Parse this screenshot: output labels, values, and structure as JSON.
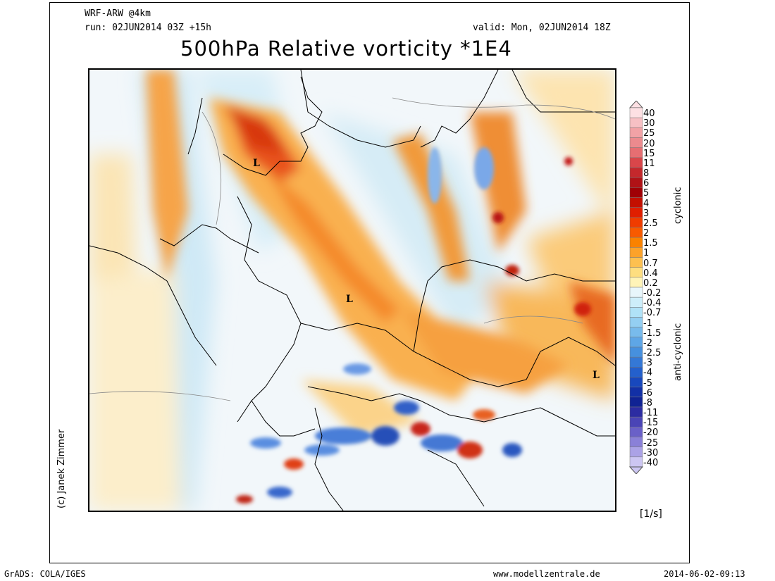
{
  "header": {
    "model": "WRF-ARW @4km",
    "run": "run: 02JUN2014 03Z +15h",
    "valid": "valid: Mon, 02JUN2014 18Z",
    "title": "500hPa Relative vorticity *1E4"
  },
  "map": {
    "low_markers": [
      "L",
      "L",
      "L"
    ]
  },
  "legend": {
    "levels": [
      "40",
      "30",
      "25",
      "20",
      "15",
      "11",
      "8",
      "6",
      "5",
      "4",
      "3",
      "2.5",
      "2",
      "1.5",
      "1",
      "0.7",
      "0.4",
      "0.2",
      "-0.2",
      "-0.4",
      "-0.7",
      "-1",
      "-1.5",
      "-2",
      "-2.5",
      "-3",
      "-4",
      "-5",
      "-6",
      "-8",
      "-11",
      "-15",
      "-20",
      "-25",
      "-30",
      "-40"
    ],
    "colors": [
      "#fde0e3",
      "#f7c0c4",
      "#f2a2a6",
      "#ec8a8e",
      "#e66e72",
      "#d9464a",
      "#c4282c",
      "#b01216",
      "#a00005",
      "#c30f00",
      "#e01e00",
      "#f03c00",
      "#f85a00",
      "#fa8200",
      "#fca22a",
      "#fdc050",
      "#fede80",
      "#fff4b8",
      "#e8f6fb",
      "#cdeefa",
      "#b0e2f7",
      "#94cff2",
      "#78bbec",
      "#5ea6e6",
      "#4690de",
      "#3478d6",
      "#2460cc",
      "#1848bd",
      "#1230a6",
      "#102394",
      "#2c2ca2",
      "#4a44b6",
      "#6a60c8",
      "#8a80d8",
      "#aba2e6",
      "#ccc6f2"
    ],
    "cyclonic_label": "cyclonic",
    "anticyclonic_label": "anti-cyclonic",
    "unit": "[1/s]"
  },
  "copyright": "(c) Janek Zimmer",
  "footer": {
    "left": "GrADS: COLA/IGES",
    "center": "www.modellzentrale.de",
    "right": "2014-06-02-09:13"
  }
}
